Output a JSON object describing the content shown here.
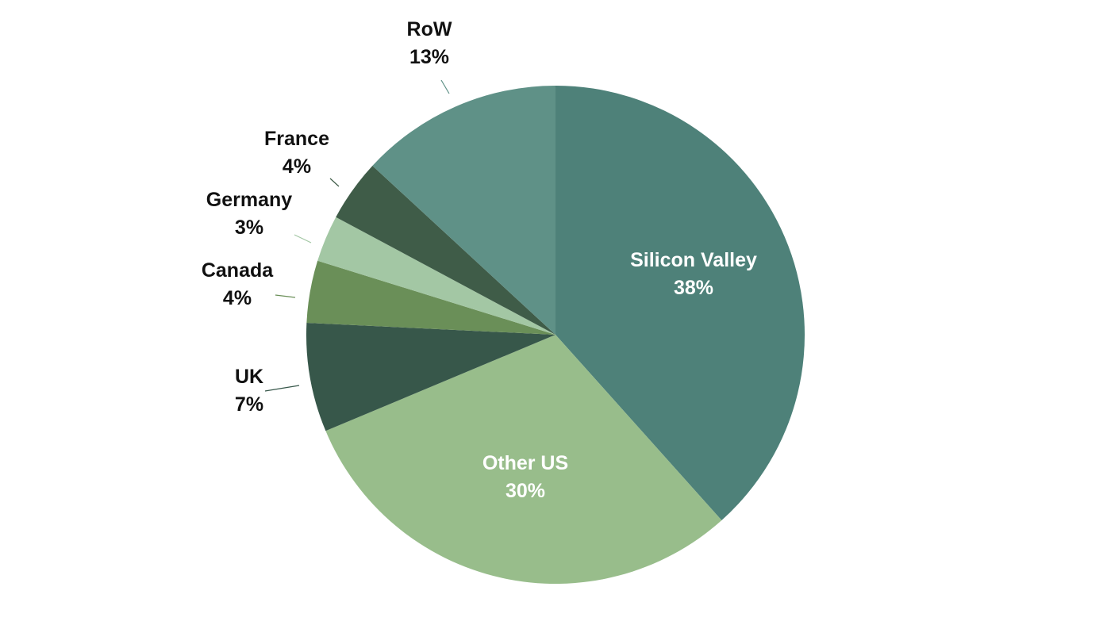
{
  "chart_data": {
    "type": "pie",
    "title": "",
    "start": "12 o'clock",
    "direction": "clockwise",
    "legend": "none",
    "label_style": "category name with percentage",
    "slices": [
      {
        "label": "Silicon Valley",
        "value": 38,
        "display": "38%",
        "color": "#4e8179",
        "label_position": "inside"
      },
      {
        "label": "Other US",
        "value": 30,
        "display": "30%",
        "color": "#98bd8b",
        "label_position": "inside"
      },
      {
        "label": "UK",
        "value": 7,
        "display": "7%",
        "color": "#37574a",
        "label_position": "outside"
      },
      {
        "label": "Canada",
        "value": 4,
        "display": "4%",
        "color": "#6a8f58",
        "label_position": "outside"
      },
      {
        "label": "Germany",
        "value": 3,
        "display": "3%",
        "color": "#a3c7a4",
        "label_position": "outside"
      },
      {
        "label": "France",
        "value": 4,
        "display": "4%",
        "color": "#3f5c48",
        "label_position": "outside"
      },
      {
        "label": "RoW",
        "value": 13,
        "display": "13%",
        "color": "#5f9187",
        "label_position": "outside"
      }
    ]
  }
}
